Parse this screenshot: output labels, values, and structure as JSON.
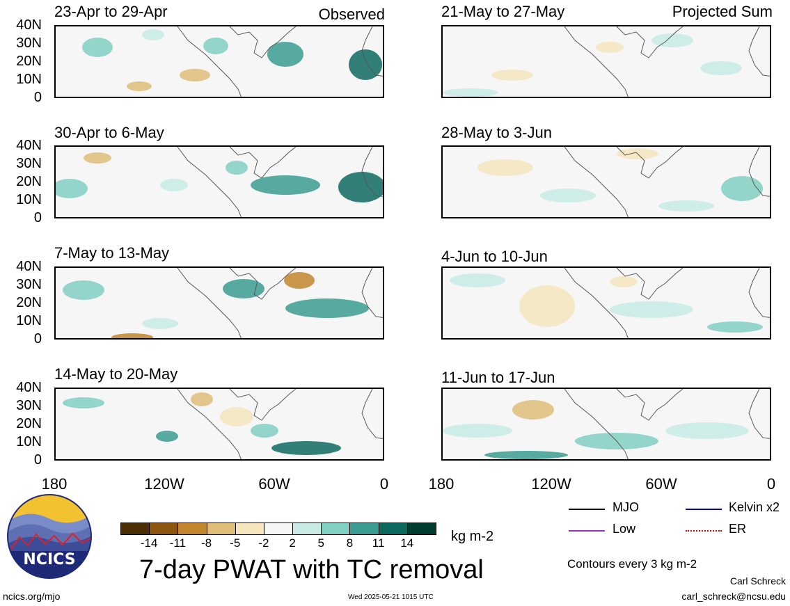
{
  "panels": {
    "left": [
      {
        "title": "23-Apr to 29-Apr",
        "tag": "Observed"
      },
      {
        "title": "30-Apr to 6-May",
        "tag": ""
      },
      {
        "title": "7-May to 13-May",
        "tag": ""
      },
      {
        "title": "14-May to 20-May",
        "tag": ""
      }
    ],
    "right": [
      {
        "title": "21-May to 27-May",
        "tag": "Projected Sum"
      },
      {
        "title": "28-May to 3-Jun",
        "tag": ""
      },
      {
        "title": "4-Jun to 10-Jun",
        "tag": ""
      },
      {
        "title": "11-Jun to 17-Jun",
        "tag": ""
      }
    ]
  },
  "axes": {
    "y_ticks": [
      "40N",
      "30N",
      "20N",
      "10N",
      "0"
    ],
    "x_ticks": [
      "180",
      "120W",
      "60W",
      "0"
    ]
  },
  "colorbar": {
    "ticks": [
      "-14",
      "-11",
      "-8",
      "-5",
      "-2",
      "2",
      "5",
      "8",
      "11",
      "14"
    ],
    "colors": [
      "#4d2e05",
      "#8f5510",
      "#c2852e",
      "#dfbd78",
      "#f5e5bd",
      "#f6f6f6",
      "#c8ebe5",
      "#82cfc3",
      "#3b9c91",
      "#0e6a5f",
      "#003c30"
    ],
    "units": "kg m-2"
  },
  "legend": {
    "items": [
      {
        "label": "MJO",
        "color": "#000000",
        "style": "solid"
      },
      {
        "label": "Kelvin x2",
        "color": "#0000cc",
        "style": "solid"
      },
      {
        "label": "Low",
        "color": "#9933cc",
        "style": "solid"
      },
      {
        "label": "ER",
        "color": "#dd0000",
        "style": "dotted"
      }
    ],
    "note": "Contours every 3 kg m-2"
  },
  "main_title": "7-day PWAT with TC removal",
  "logo_text": "NCICS",
  "footer": {
    "url": "ncics.org/mjo",
    "timestamp": "Wed 2025-05-21 1015 UTC",
    "author": "Carl Schreck",
    "email": "carl_schreck@ncsu.edu"
  },
  "chart_data": {
    "type": "heatmap",
    "title": "7-day PWAT with TC removal",
    "xlabel": "",
    "ylabel": "",
    "xlim": [
      "180",
      "0"
    ],
    "ylim": [
      "0",
      "40N"
    ],
    "color_levels": [
      -14,
      -11,
      -8,
      -5,
      -2,
      2,
      5,
      8,
      11,
      14
    ],
    "units": "kg m-2",
    "panels": [
      "23-Apr to 29-Apr",
      "30-Apr to 6-May",
      "7-May to 13-May",
      "14-May to 20-May",
      "21-May to 27-May",
      "28-May to 3-Jun",
      "4-Jun to 10-Jun",
      "11-Jun to 17-Jun"
    ]
  }
}
